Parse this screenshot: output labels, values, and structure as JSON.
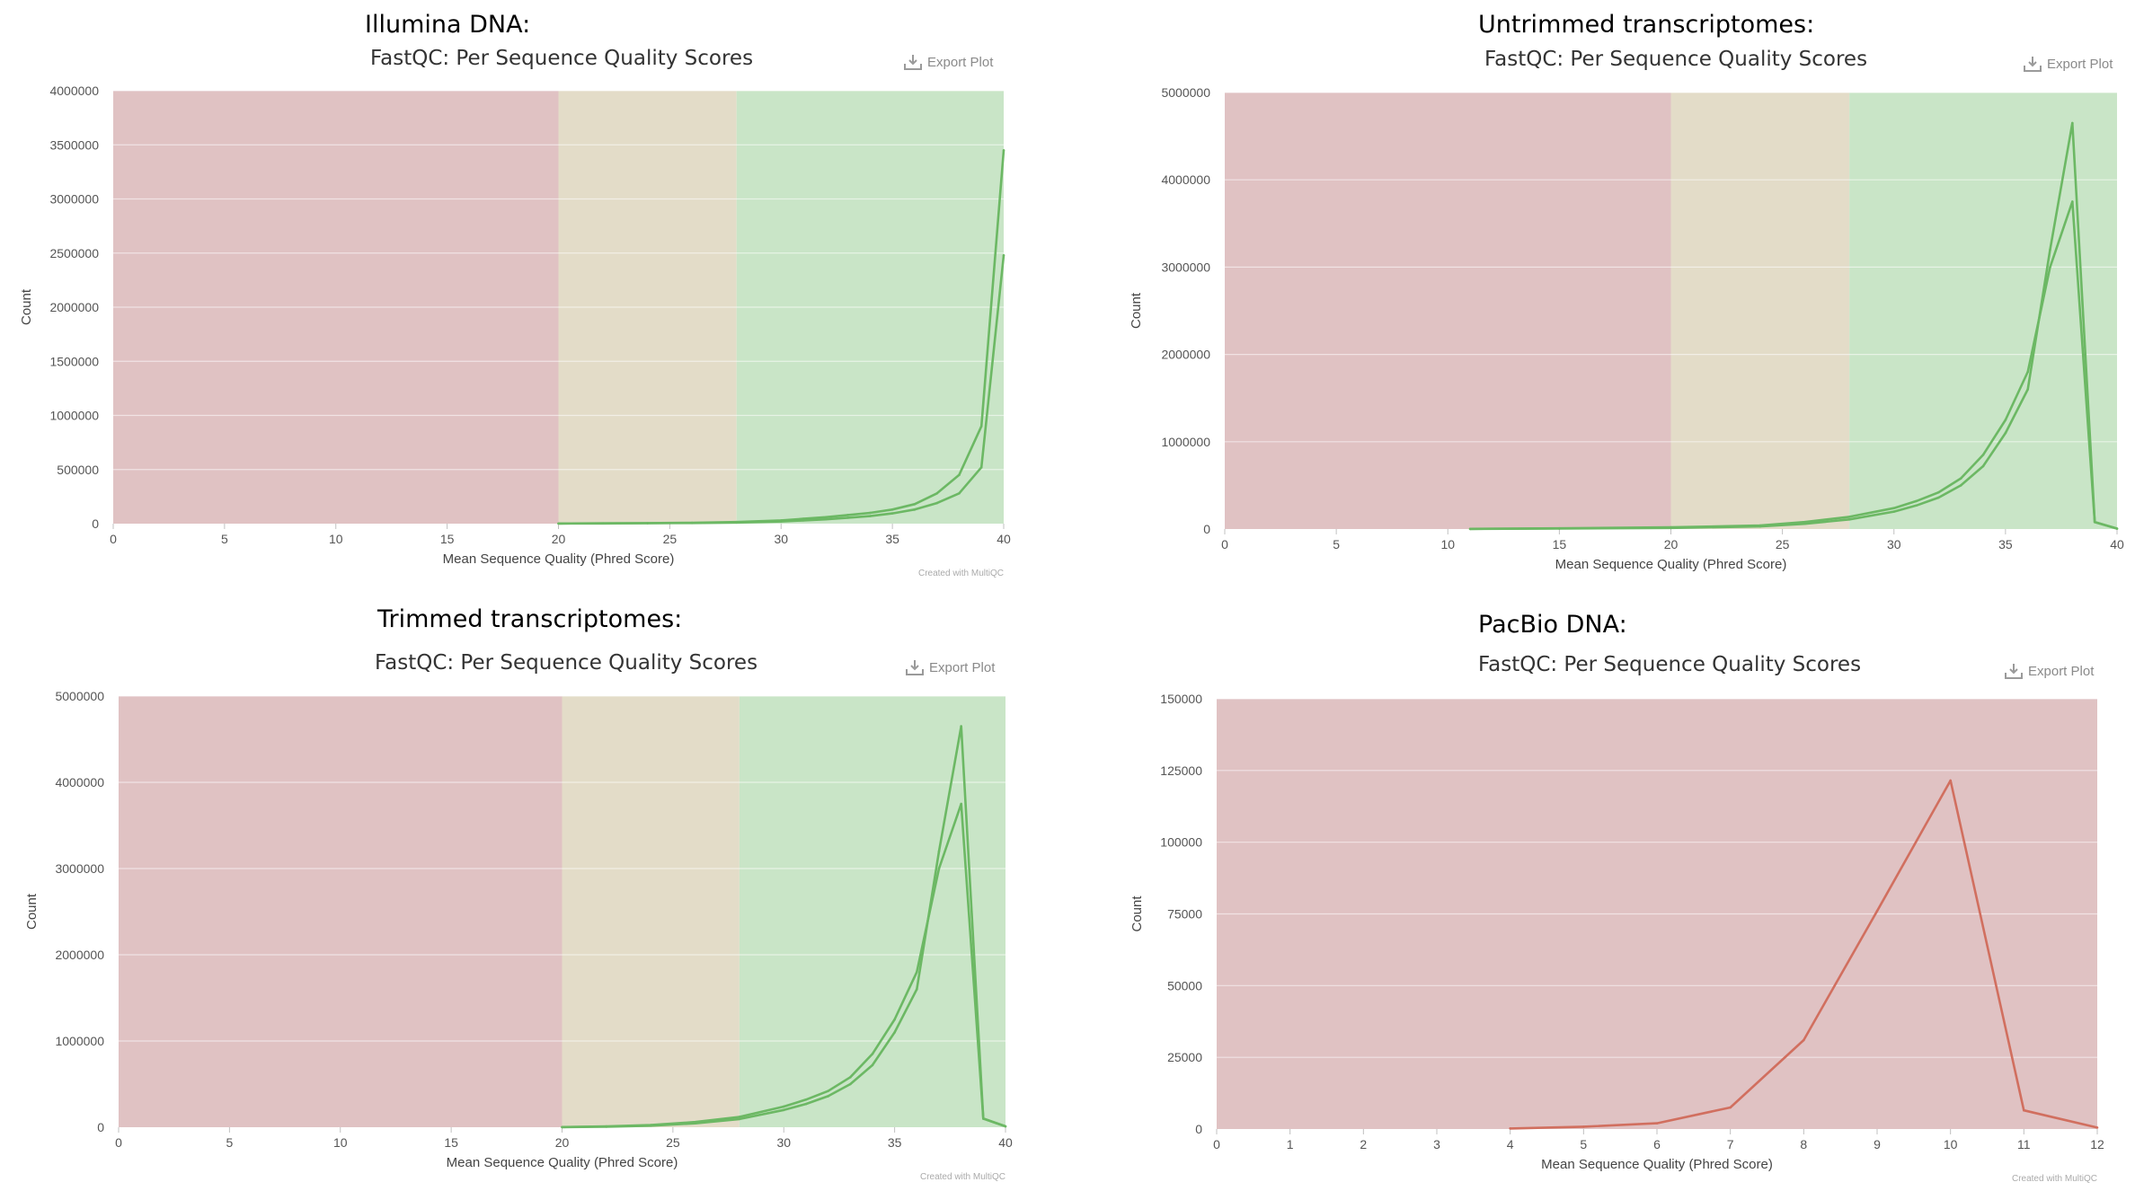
{
  "panels": [
    {
      "heading": "Illumina DNA:",
      "chart_title": "FastQC: Per Sequence Quality Scores",
      "export_label": "Export Plot",
      "credit": "Created with MultiQC"
    },
    {
      "heading": "Untrimmed transcriptomes:",
      "chart_title": "FastQC: Per Sequence Quality Scores",
      "export_label": "Export Plot"
    },
    {
      "heading": "Trimmed transcriptomes:",
      "chart_title": "FastQC: Per Sequence Quality Scores",
      "export_label": "Export Plot",
      "credit": "Created with MultiQC"
    },
    {
      "heading": "PacBio DNA:",
      "chart_title": "FastQC: Per Sequence Quality Scores",
      "export_label": "Export Plot",
      "credit": "Created with MultiQC"
    }
  ],
  "colors": {
    "band_fail": "#e0c2c3",
    "band_warn": "#e3dcc8",
    "band_pass": "#c9e5c7",
    "line_green": "#6cb864",
    "line_red": "#d16f5f",
    "grid": "#ececec",
    "export_icon": "#9a9a9a"
  },
  "chart_data": [
    {
      "type": "line",
      "title": "FastQC: Per Sequence Quality Scores",
      "xlabel": "Mean Sequence Quality (Phred Score)",
      "ylabel": "Count",
      "xlim": [
        0,
        40
      ],
      "ylim": [
        0,
        4000000
      ],
      "xticks": [
        0,
        5,
        10,
        15,
        20,
        25,
        30,
        35,
        40
      ],
      "yticks": [
        0,
        500000,
        1000000,
        1500000,
        2000000,
        2500000,
        3000000,
        3500000,
        4000000
      ],
      "grid": true,
      "bands": [
        {
          "from": 0,
          "to": 20,
          "status": "fail"
        },
        {
          "from": 20,
          "to": 28,
          "status": "warn"
        },
        {
          "from": 28,
          "to": 40,
          "status": "pass"
        }
      ],
      "series": [
        {
          "color": "#6cb864",
          "x": [
            20,
            22,
            24,
            26,
            28,
            30,
            31,
            32,
            33,
            34,
            35,
            36,
            37,
            38,
            39,
            40
          ],
          "y": [
            2000,
            3000,
            5000,
            8000,
            15000,
            30000,
            45000,
            60000,
            80000,
            100000,
            130000,
            180000,
            280000,
            450000,
            900000,
            3450000
          ]
        },
        {
          "color": "#6cb864",
          "x": [
            20,
            22,
            24,
            26,
            28,
            30,
            31,
            32,
            33,
            34,
            35,
            36,
            37,
            38,
            39,
            40
          ],
          "y": [
            1000,
            2000,
            4000,
            6000,
            10000,
            20000,
            30000,
            40000,
            55000,
            70000,
            95000,
            130000,
            190000,
            280000,
            520000,
            2480000
          ]
        }
      ]
    },
    {
      "type": "line",
      "title": "FastQC: Per Sequence Quality Scores",
      "xlabel": "Mean Sequence Quality (Phred Score)",
      "ylabel": "Count",
      "xlim": [
        0,
        40
      ],
      "ylim": [
        0,
        5000000
      ],
      "xticks": [
        0,
        5,
        10,
        15,
        20,
        25,
        30,
        35,
        40
      ],
      "yticks": [
        0,
        1000000,
        2000000,
        3000000,
        4000000,
        5000000
      ],
      "grid": true,
      "bands": [
        {
          "from": 0,
          "to": 20,
          "status": "fail"
        },
        {
          "from": 20,
          "to": 28,
          "status": "warn"
        },
        {
          "from": 28,
          "to": 40,
          "status": "pass"
        }
      ],
      "series": [
        {
          "color": "#6cb864",
          "x": [
            11,
            15,
            20,
            24,
            26,
            28,
            30,
            31,
            32,
            33,
            34,
            35,
            36,
            37,
            38,
            39,
            40
          ],
          "y": [
            2000,
            8000,
            20000,
            40000,
            80000,
            140000,
            240000,
            320000,
            420000,
            580000,
            850000,
            1250000,
            1800000,
            3000000,
            3750000,
            80000,
            5000
          ]
        },
        {
          "color": "#6cb864",
          "x": [
            11,
            15,
            20,
            24,
            26,
            28,
            30,
            31,
            32,
            33,
            34,
            35,
            36,
            37,
            38,
            39,
            40
          ],
          "y": [
            1000,
            5000,
            12000,
            30000,
            60000,
            110000,
            200000,
            270000,
            360000,
            500000,
            720000,
            1100000,
            1600000,
            3200000,
            4650000,
            80000,
            5000
          ]
        }
      ]
    },
    {
      "type": "line",
      "title": "FastQC: Per Sequence Quality Scores",
      "xlabel": "Mean Sequence Quality (Phred Score)",
      "ylabel": "Count",
      "xlim": [
        0,
        40
      ],
      "ylim": [
        0,
        5000000
      ],
      "xticks": [
        0,
        5,
        10,
        15,
        20,
        25,
        30,
        35,
        40
      ],
      "yticks": [
        0,
        1000000,
        2000000,
        3000000,
        4000000,
        5000000
      ],
      "grid": true,
      "bands": [
        {
          "from": 0,
          "to": 20,
          "status": "fail"
        },
        {
          "from": 20,
          "to": 28,
          "status": "warn"
        },
        {
          "from": 28,
          "to": 40,
          "status": "pass"
        }
      ],
      "series": [
        {
          "color": "#6cb864",
          "x": [
            20,
            22,
            24,
            26,
            28,
            30,
            31,
            32,
            33,
            34,
            35,
            36,
            37,
            38,
            39,
            40
          ],
          "y": [
            2000,
            10000,
            25000,
            60000,
            120000,
            240000,
            320000,
            420000,
            580000,
            850000,
            1250000,
            1800000,
            3000000,
            3750000,
            100000,
            10000
          ]
        },
        {
          "color": "#6cb864",
          "x": [
            20,
            22,
            24,
            26,
            28,
            30,
            31,
            32,
            33,
            34,
            35,
            36,
            37,
            38,
            39,
            40
          ],
          "y": [
            1000,
            6000,
            18000,
            45000,
            95000,
            200000,
            270000,
            360000,
            500000,
            720000,
            1100000,
            1600000,
            3200000,
            4650000,
            100000,
            10000
          ]
        }
      ]
    },
    {
      "type": "line",
      "title": "FastQC: Per Sequence Quality Scores",
      "xlabel": "Mean Sequence Quality (Phred Score)",
      "ylabel": "Count",
      "xlim": [
        0,
        12
      ],
      "ylim": [
        0,
        150000
      ],
      "xticks": [
        0,
        1,
        2,
        3,
        4,
        5,
        6,
        7,
        8,
        9,
        10,
        11,
        12
      ],
      "yticks": [
        0,
        25000,
        50000,
        75000,
        100000,
        125000,
        150000
      ],
      "grid": true,
      "bands": [
        {
          "from": 0,
          "to": 12,
          "status": "fail"
        }
      ],
      "series": [
        {
          "color": "#d16f5f",
          "x": [
            4,
            5,
            6,
            7,
            8,
            9,
            10,
            11,
            12
          ],
          "y": [
            200,
            800,
            2000,
            7500,
            31000,
            76000,
            121500,
            6500,
            500
          ]
        }
      ]
    }
  ]
}
